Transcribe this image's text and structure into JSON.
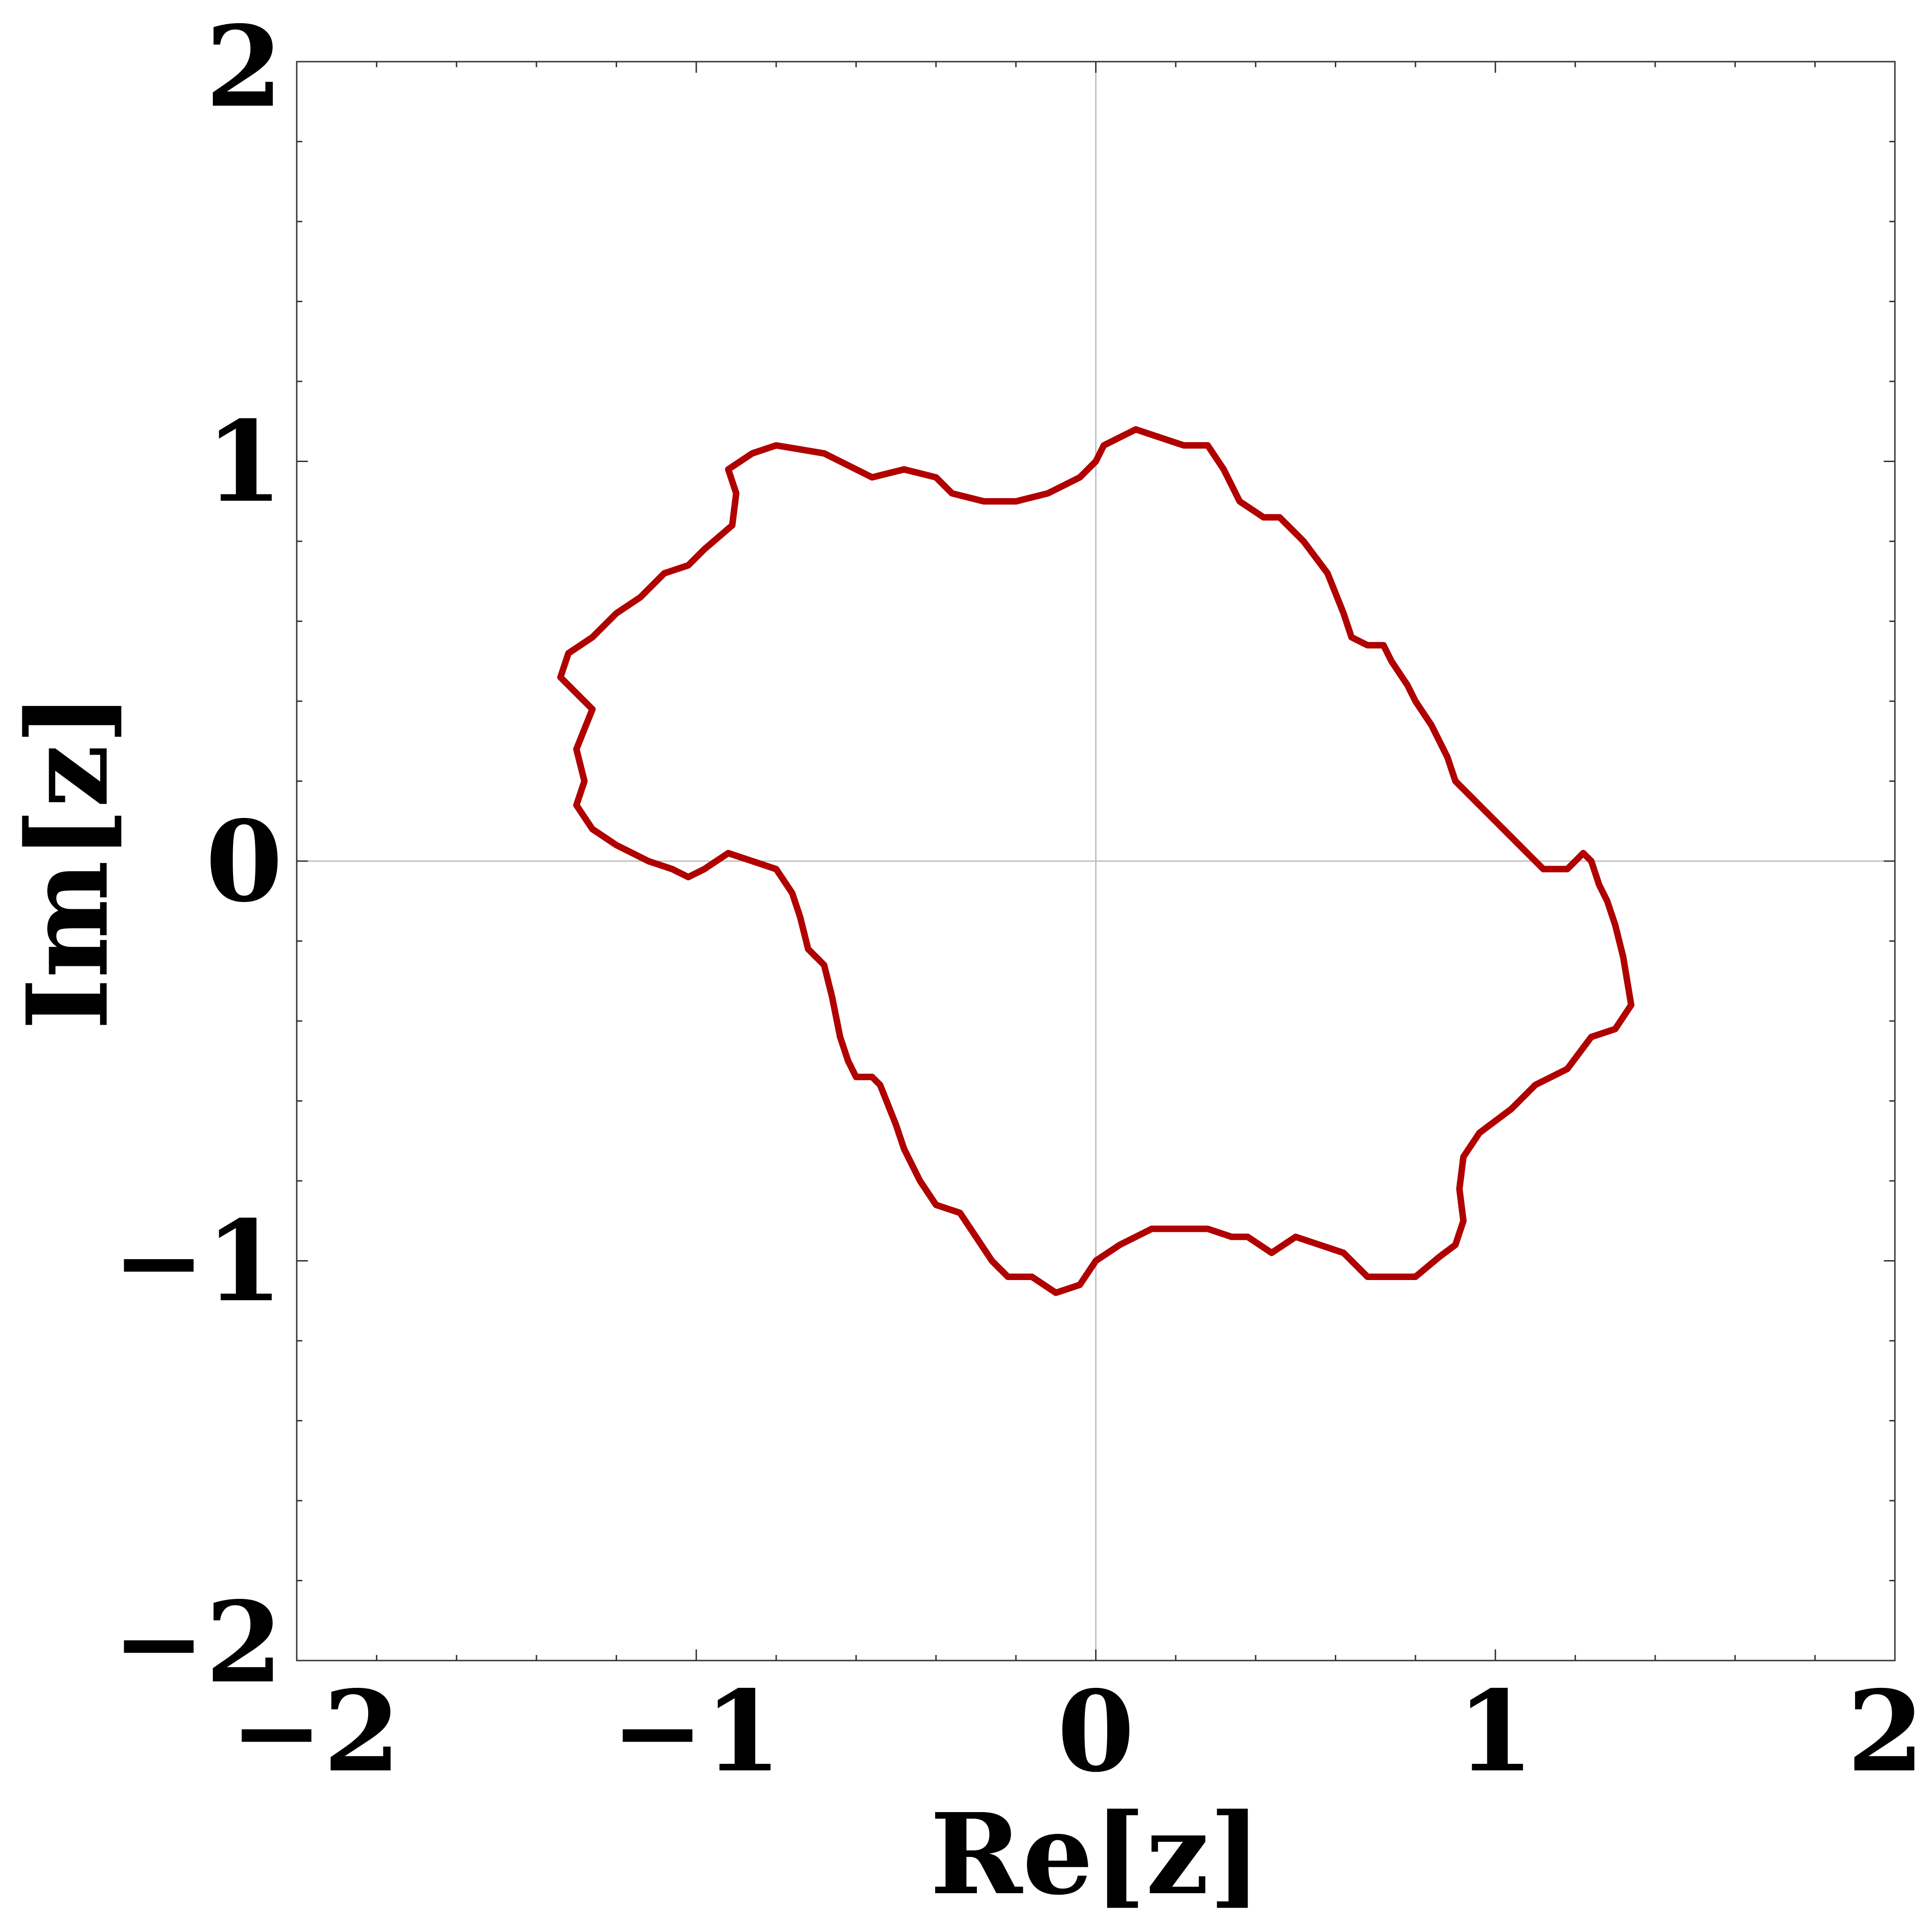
{
  "chart_data": {
    "type": "line",
    "title": "",
    "xlabel": "Re[z]",
    "ylabel": "Im[z]",
    "xlim": [
      -2,
      2
    ],
    "ylim": [
      -2,
      2
    ],
    "xticks": [
      -2,
      -1,
      0,
      1,
      2
    ],
    "yticks": [
      -2,
      -1,
      0,
      1,
      2
    ],
    "xtick_labels": [
      "−2",
      "−1",
      "0",
      "1",
      "2"
    ],
    "ytick_labels": [
      "−2",
      "−1",
      "0",
      "1",
      "2"
    ],
    "grid": "zero lines only",
    "line_color": "#b00000",
    "series": [
      {
        "closed": true,
        "x": [
          0.1,
          0.22,
          0.28,
          0.32,
          0.36,
          0.42,
          0.46,
          0.52,
          0.58,
          0.62,
          0.64,
          0.68,
          0.72,
          0.74,
          0.78,
          0.8,
          0.84,
          0.88,
          0.9,
          0.96,
          1.02,
          1.08,
          1.12,
          1.18,
          1.22,
          1.24,
          1.26,
          1.28,
          1.3,
          1.32,
          1.34,
          1.3,
          1.24,
          1.18,
          1.1,
          1.04,
          0.96,
          0.92,
          0.91,
          0.92,
          0.9,
          0.86,
          0.8,
          0.74,
          0.68,
          0.62,
          0.56,
          0.5,
          0.44,
          0.38,
          0.34,
          0.28,
          0.22,
          0.14,
          0.06,
          0.0,
          -0.04,
          -0.1,
          -0.16,
          -0.22,
          -0.26,
          -0.3,
          -0.34,
          -0.4,
          -0.44,
          -0.48,
          -0.5,
          -0.54,
          -0.56,
          -0.6,
          -0.62,
          -0.64,
          -0.66,
          -0.68,
          -0.72,
          -0.74,
          -0.76,
          -0.8,
          -0.86,
          -0.92,
          -0.98,
          -1.02,
          -1.06,
          -1.12,
          -1.16,
          -1.2,
          -1.26,
          -1.3,
          -1.28,
          -1.3,
          -1.26,
          -1.3,
          -1.34,
          -1.32,
          -1.26,
          -1.2,
          -1.14,
          -1.08,
          -1.02,
          -0.98,
          -0.91,
          -0.9,
          -0.92,
          -0.86,
          -0.8,
          -0.74,
          -0.68,
          -0.64,
          -0.56,
          -0.48,
          -0.4,
          -0.36,
          -0.28,
          -0.2,
          -0.12,
          -0.04,
          0.0,
          0.02,
          0.1
        ],
        "y": [
          1.08,
          1.04,
          1.04,
          0.98,
          0.9,
          0.86,
          0.86,
          0.8,
          0.72,
          0.62,
          0.56,
          0.54,
          0.54,
          0.5,
          0.44,
          0.4,
          0.34,
          0.26,
          0.2,
          0.14,
          0.08,
          0.02,
          -0.02,
          -0.02,
          0.02,
          0.0,
          -0.06,
          -0.1,
          -0.16,
          -0.24,
          -0.36,
          -0.42,
          -0.44,
          -0.52,
          -0.56,
          -0.62,
          -0.68,
          -0.74,
          -0.82,
          -0.9,
          -0.96,
          -0.99,
          -1.04,
          -1.04,
          -1.04,
          -0.98,
          -0.96,
          -0.94,
          -0.98,
          -0.94,
          -0.94,
          -0.92,
          -0.92,
          -0.92,
          -0.96,
          -1.0,
          -1.06,
          -1.08,
          -1.04,
          -1.04,
          -1.0,
          -0.94,
          -0.88,
          -0.86,
          -0.8,
          -0.72,
          -0.66,
          -0.56,
          -0.54,
          -0.54,
          -0.5,
          -0.44,
          -0.34,
          -0.26,
          -0.22,
          -0.14,
          -0.08,
          -0.02,
          0.0,
          0.02,
          -0.02,
          -0.04,
          -0.02,
          0.0,
          0.02,
          0.04,
          0.08,
          0.14,
          0.2,
          0.28,
          0.38,
          0.42,
          0.46,
          0.52,
          0.56,
          0.62,
          0.66,
          0.72,
          0.74,
          0.78,
          0.84,
          0.92,
          0.98,
          1.02,
          1.04,
          1.03,
          1.02,
          1.0,
          0.96,
          0.98,
          0.96,
          0.92,
          0.9,
          0.9,
          0.92,
          0.96,
          1.0,
          1.04,
          1.08
        ]
      }
    ]
  }
}
